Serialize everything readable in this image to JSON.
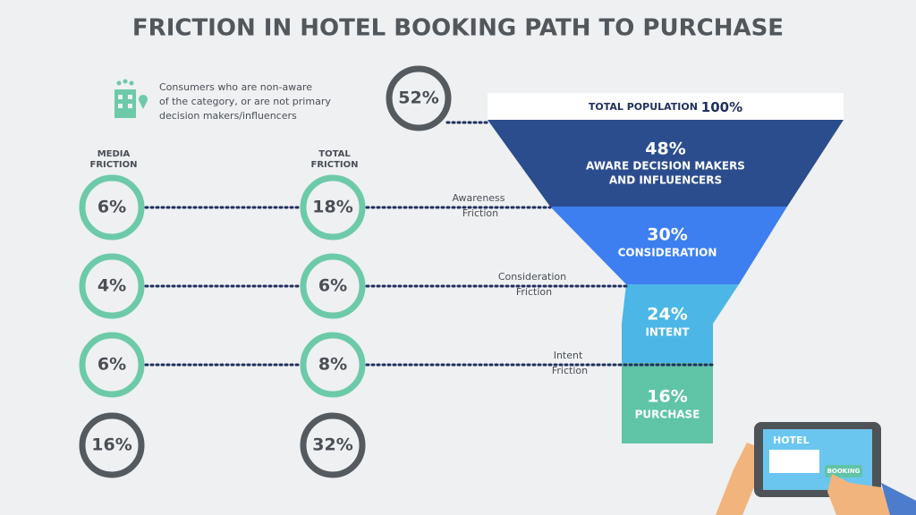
{
  "title": "FRICTION IN HOTEL BOOKING PATH TO PURCHASE",
  "legend": {
    "lines": [
      "Consumers who are non-aware",
      "of the category, or are not primary",
      "decision makers/influencers"
    ],
    "value": "52%"
  },
  "headers": {
    "media": [
      "MEDIA",
      "FRICTION"
    ],
    "total": [
      "TOTAL",
      "FRICTION"
    ]
  },
  "rows": [
    {
      "media": "6%",
      "total": "18%",
      "label": [
        "Awareness",
        "Friction"
      ]
    },
    {
      "media": "4%",
      "total": "6%",
      "label": [
        "Consideration",
        "Friction"
      ]
    },
    {
      "media": "6%",
      "total": "8%",
      "label": [
        "Intent",
        "Friction"
      ]
    }
  ],
  "totals": {
    "media": "16%",
    "total": "32%"
  },
  "funnel": {
    "top": {
      "label": "TOTAL POPULATION",
      "value": "100%"
    },
    "stages": [
      {
        "value": "48%",
        "label": [
          "AWARE DECISION MAKERS",
          "AND INFLUENCERS"
        ]
      },
      {
        "value": "30%",
        "label": [
          "CONSIDERATION"
        ]
      },
      {
        "value": "24%",
        "label": [
          "INTENT"
        ]
      },
      {
        "value": "16%",
        "label": [
          "PURCHASE"
        ]
      }
    ]
  },
  "tablet": {
    "title": "HOTEL",
    "button": "BOOKING"
  }
}
